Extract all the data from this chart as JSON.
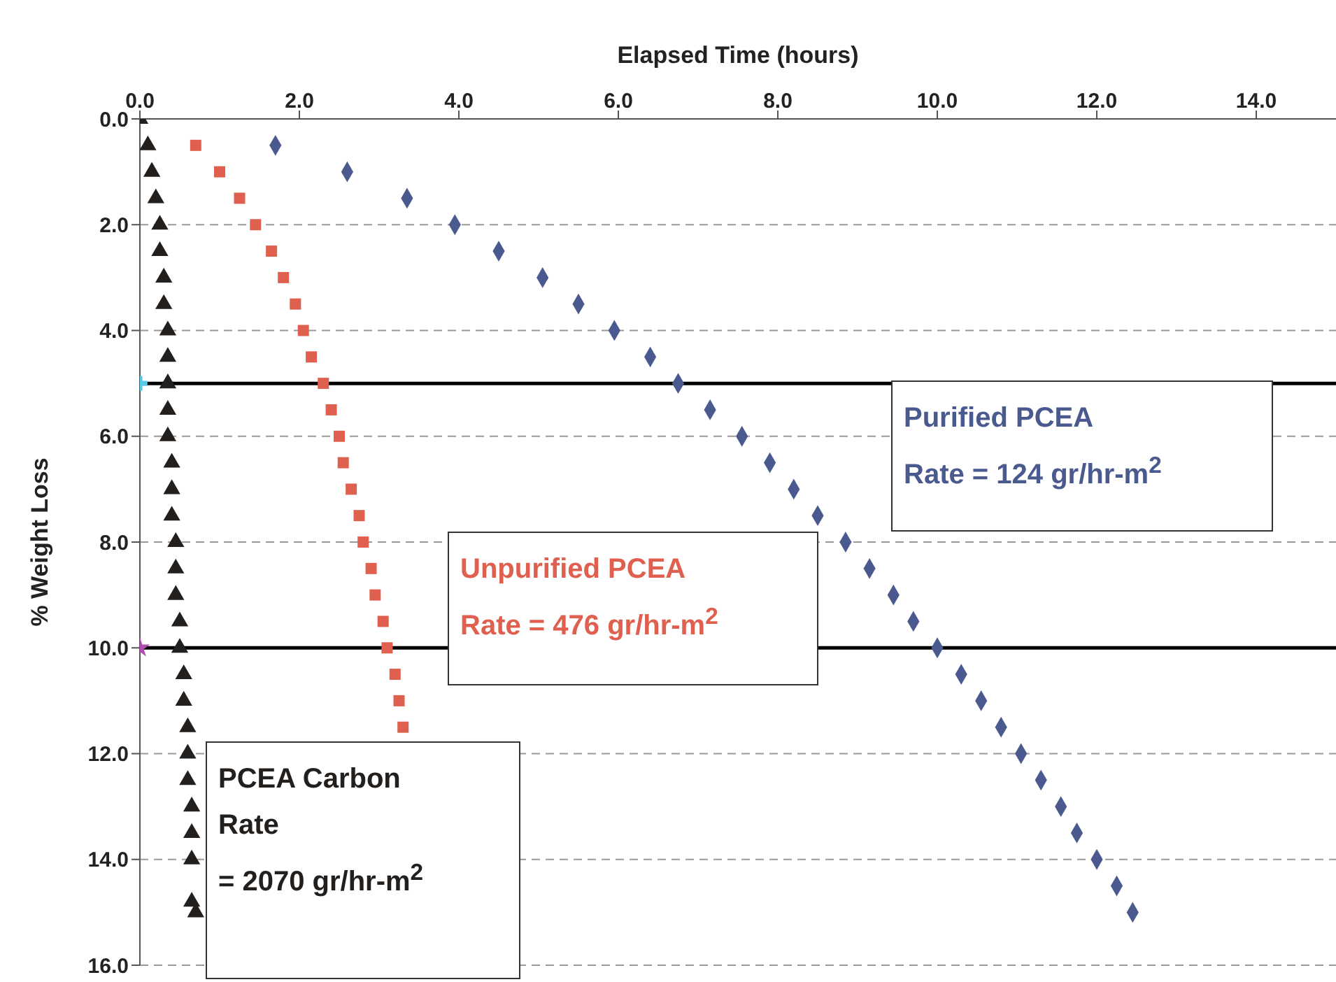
{
  "chart_data": {
    "type": "scatter",
    "xlabel": "Elapsed Time (hours)",
    "ylabel": "% Weight Loss",
    "xlim": [
      0,
      15
    ],
    "xticks": [
      {
        "value": 0,
        "label": "0.0"
      },
      {
        "value": 2,
        "label": "2.0"
      },
      {
        "value": 4,
        "label": "4.0"
      },
      {
        "value": 6,
        "label": "6.0"
      },
      {
        "value": 8,
        "label": "8.0"
      },
      {
        "value": 10,
        "label": "10.0"
      },
      {
        "value": 12,
        "label": "12.0"
      },
      {
        "value": 14,
        "label": "14.0"
      }
    ],
    "ylim": [
      16,
      0
    ],
    "yticks": [
      {
        "value": 0,
        "label": "0.0"
      },
      {
        "value": 2,
        "label": "2.0"
      },
      {
        "value": 4,
        "label": "4.0"
      },
      {
        "value": 6,
        "label": "6.0"
      },
      {
        "value": 8,
        "label": "8.0"
      },
      {
        "value": 10,
        "label": "10.0"
      },
      {
        "value": 12,
        "label": "12.0"
      },
      {
        "value": 14,
        "label": "14.0"
      },
      {
        "value": 16,
        "label": "16.0"
      }
    ],
    "grid": "y",
    "series": [
      {
        "color": "#4a5a8f",
        "marker": "diamond",
        "x": [
          1.7,
          2.6,
          3.35,
          3.95,
          4.5,
          5.05,
          5.5,
          5.95,
          6.4,
          6.75,
          7.15,
          7.55,
          7.9,
          8.2,
          8.5,
          8.85,
          9.15,
          9.45,
          9.7,
          10.0,
          10.3,
          10.55,
          10.8,
          11.05,
          11.3,
          11.55,
          11.75,
          12.0,
          12.25,
          12.45
        ],
        "values": [
          0.5,
          1.0,
          1.5,
          2.0,
          2.5,
          3.0,
          3.5,
          4.0,
          4.5,
          5.0,
          5.5,
          6.0,
          6.5,
          7.0,
          7.5,
          8.0,
          8.5,
          9.0,
          9.5,
          10.0,
          10.5,
          11.0,
          11.5,
          12.0,
          12.5,
          13.0,
          13.5,
          14.0,
          14.5,
          15.0
        ]
      },
      {
        "color": "#e0604f",
        "marker": "square",
        "x": [
          0.7,
          1.0,
          1.25,
          1.45,
          1.65,
          1.8,
          1.95,
          2.05,
          2.15,
          2.3,
          2.4,
          2.5,
          2.55,
          2.65,
          2.75,
          2.8,
          2.9,
          2.95,
          3.05,
          3.1,
          3.2,
          3.25,
          3.3
        ],
        "values": [
          0.5,
          1.0,
          1.5,
          2.0,
          2.5,
          3.0,
          3.5,
          4.0,
          4.5,
          5.0,
          5.5,
          6.0,
          6.5,
          7.0,
          7.5,
          8.0,
          8.5,
          9.0,
          9.5,
          10.0,
          10.5,
          11.0,
          11.5
        ]
      },
      {
        "color": "#231f1c",
        "marker": "triangle",
        "x": [
          0.0,
          0.1,
          0.15,
          0.2,
          0.25,
          0.25,
          0.3,
          0.3,
          0.35,
          0.35,
          0.35,
          0.35,
          0.35,
          0.4,
          0.4,
          0.4,
          0.45,
          0.45,
          0.45,
          0.5,
          0.5,
          0.55,
          0.55,
          0.6,
          0.6,
          0.6,
          0.65,
          0.65,
          0.65,
          0.65,
          0.7
        ],
        "values": [
          0.0,
          0.5,
          1.0,
          1.5,
          2.0,
          2.5,
          3.0,
          3.5,
          4.0,
          4.5,
          5.0,
          5.5,
          6.0,
          6.5,
          7.0,
          7.5,
          8.0,
          8.5,
          9.0,
          9.5,
          10.0,
          10.5,
          11.0,
          11.5,
          12.0,
          12.5,
          13.0,
          13.5,
          14.0,
          14.8,
          15.0
        ]
      },
      {
        "color": "#5bc8e8",
        "marker": "cross",
        "x": [
          0
        ],
        "values": [
          5
        ]
      },
      {
        "color": "#b04fb0",
        "marker": "star",
        "x": [
          0
        ],
        "values": [
          10
        ]
      }
    ],
    "ref_lines": [
      {
        "axis": "y",
        "value": 5,
        "color": "#000000"
      },
      {
        "axis": "y",
        "value": 10,
        "color": "#000000"
      }
    ],
    "annotations": [
      "Purified PCEA\nRate = 124 gr/hr-m$^{2}$",
      "Unpurified PCEA\nRate = 476 gr/hr-m$^{2}$",
      "PCEA Carbon\nRate\n= 2070 gr/hr-m$^{2}$"
    ]
  }
}
